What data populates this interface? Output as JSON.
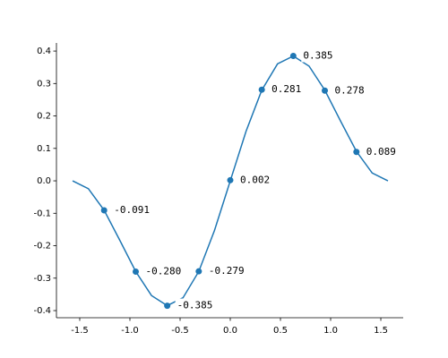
{
  "chart_data": {
    "type": "line",
    "color": "#1f77b4",
    "xlim": [
      -1.732,
      1.723
    ],
    "ylim": [
      -0.422,
      0.425
    ],
    "xticks": [
      -1.5,
      {
        "value": -1.0,
        "label": "-1.0"
      },
      -0.5,
      {
        "value": 0.0,
        "label": "0.0"
      },
      0.5,
      {
        "value": 1.0,
        "label": "1.0"
      },
      1.5
    ],
    "yticks": [
      -0.4,
      -0.3,
      -0.2,
      -0.1,
      {
        "value": 0.0,
        "label": "0.0"
      },
      0.1,
      0.2,
      0.3,
      0.4
    ],
    "line": {
      "x": [
        -1.571,
        -1.414,
        -1.257,
        -1.1,
        -0.942,
        -0.785,
        -0.628,
        -0.471,
        -0.314,
        -0.157,
        0,
        0.157,
        0.314,
        0.471,
        0.628,
        0.785,
        0.942,
        1.1,
        1.257,
        1.414,
        1.571
      ],
      "values": [
        0,
        -0.0242,
        -0.0908,
        -0.1836,
        -0.2795,
        -0.3536,
        -0.3847,
        -0.3605,
        -0.2795,
        -0.1526,
        0,
        0.1526,
        0.2795,
        0.3605,
        0.3847,
        0.3536,
        0.2795,
        0.1836,
        0.0908,
        0.0242,
        0
      ]
    },
    "points": {
      "x": [
        -1.257,
        -0.942,
        -0.628,
        -0.314,
        0,
        0.314,
        0.628,
        0.942,
        1.257
      ],
      "values": [
        -0.091,
        -0.28,
        -0.385,
        -0.279,
        0.002,
        0.281,
        0.385,
        0.278,
        0.089
      ],
      "value_labels": [
        "-0.091",
        "-0.280",
        "-0.385",
        "-0.279",
        "0.002",
        "0.281",
        "0.385",
        "0.278",
        "0.089"
      ]
    }
  }
}
